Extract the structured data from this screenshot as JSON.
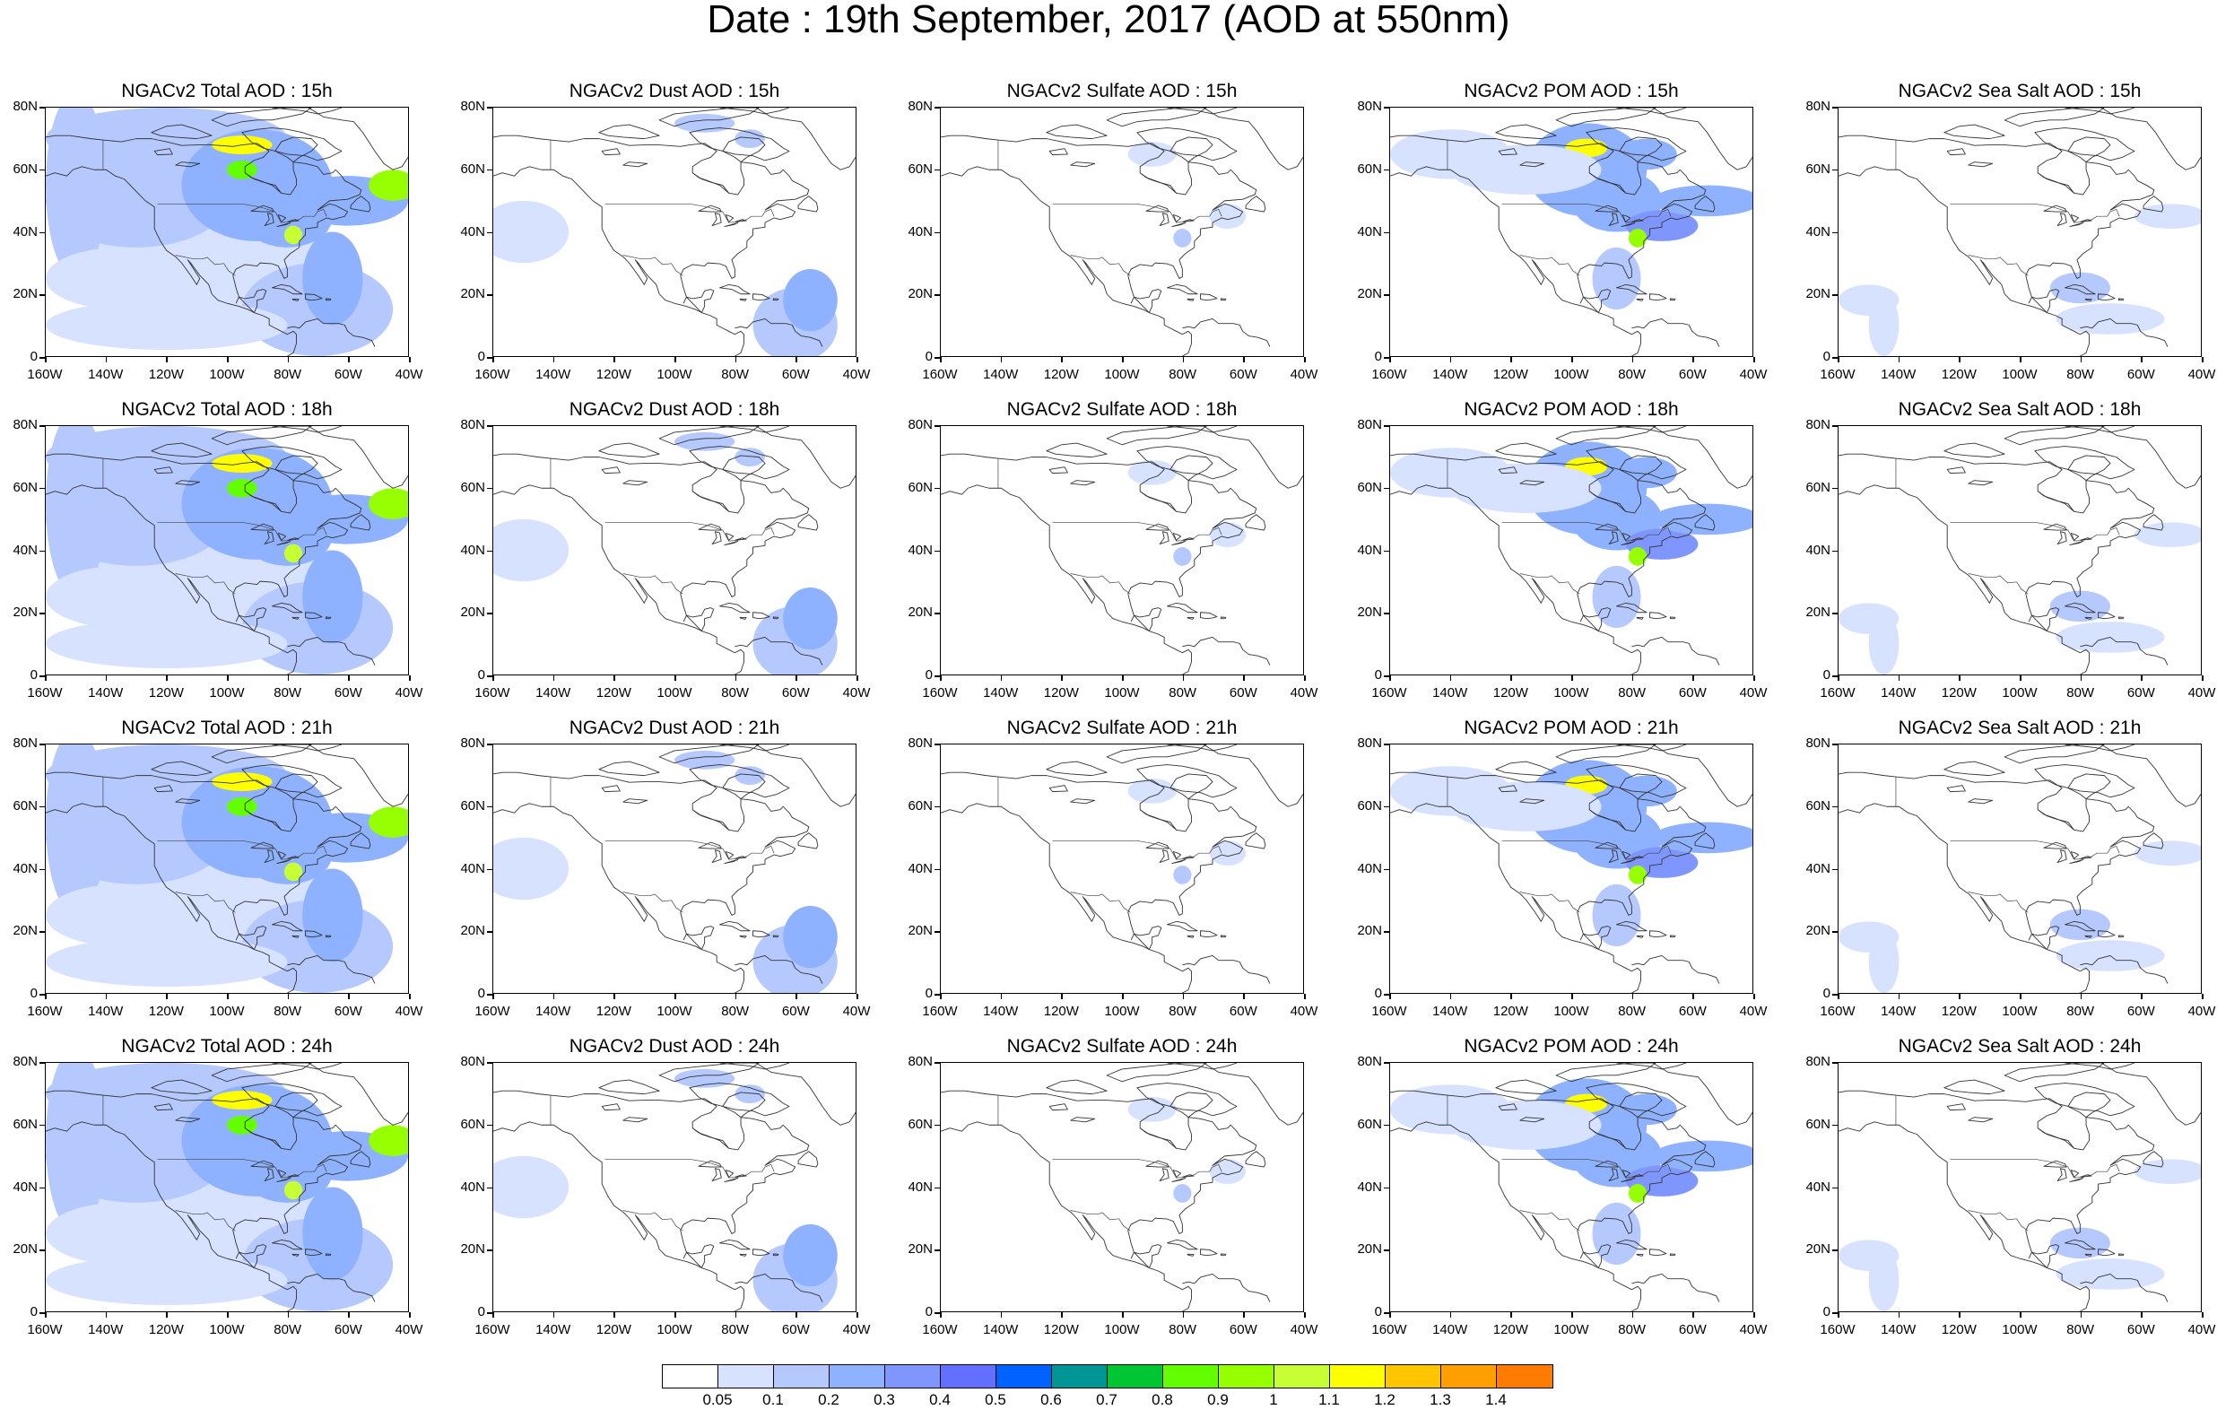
{
  "title": "Date : 19th September, 2017 (AOD at 550nm)",
  "panels": [
    [
      "NGACv2 Total AOD : 15h",
      "NGACv2 Dust AOD : 15h",
      "NGACv2 Sulfate AOD : 15h",
      "NGACv2 POM AOD : 15h",
      "NGACv2 Sea Salt AOD : 15h"
    ],
    [
      "NGACv2 Total AOD : 18h",
      "NGACv2 Dust AOD : 18h",
      "NGACv2 Sulfate AOD : 18h",
      "NGACv2 POM AOD : 18h",
      "NGACv2 Sea Salt AOD : 18h"
    ],
    [
      "NGACv2 Total AOD : 21h",
      "NGACv2 Dust AOD : 21h",
      "NGACv2 Sulfate AOD : 21h",
      "NGACv2 POM AOD : 21h",
      "NGACv2 Sea Salt AOD : 21h"
    ],
    [
      "NGACv2 Total AOD : 24h",
      "NGACv2 Dust AOD : 24h",
      "NGACv2 Sulfate AOD : 24h",
      "NGACv2 POM AOD : 24h",
      "NGACv2 Sea Salt  AOD : 24h"
    ]
  ],
  "lat_ticks": [
    "80N",
    "60N",
    "40N",
    "20N",
    "0"
  ],
  "lon_ticks": [
    "160W",
    "140W",
    "120W",
    "100W",
    "80W",
    "60W",
    "40W"
  ],
  "colorbar": {
    "colors": [
      "#ffffff",
      "#d6e2ff",
      "#b5c9ff",
      "#8eb2ff",
      "#7f96ff",
      "#6370ff",
      "#0063ff",
      "#009696",
      "#00c633",
      "#63ff00",
      "#96ff00",
      "#c6ff33",
      "#ffff00",
      "#ffc600",
      "#ffa000",
      "#ff7c00",
      "#ff1900"
    ],
    "labels": [
      "0.05",
      "0.1",
      "0.2",
      "0.3",
      "0.4",
      "0.5",
      "0.6",
      "0.7",
      "0.8",
      "0.9",
      "1",
      "1.1",
      "1.2",
      "1.3",
      "1.4"
    ]
  }
}
